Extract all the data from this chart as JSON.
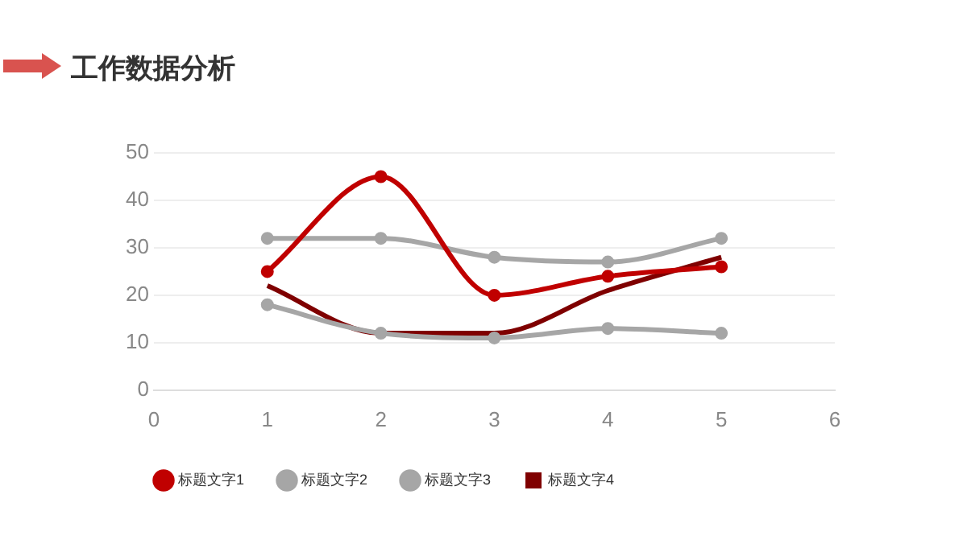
{
  "chart_data": {
    "type": "line",
    "title": "工作数据分析",
    "x": [
      1,
      2,
      3,
      4,
      5
    ],
    "series": [
      {
        "name": "标题文字1",
        "color": "#c00000",
        "values": [
          25,
          45,
          20,
          24,
          26
        ],
        "marker": "circle"
      },
      {
        "name": "标题文字2",
        "color": "#a6a6a6",
        "values": [
          32,
          32,
          28,
          27,
          32
        ],
        "marker": "circle"
      },
      {
        "name": "标题文字3",
        "color": "#a6a6a6",
        "values": [
          18,
          12,
          11,
          13,
          12
        ],
        "marker": "circle"
      },
      {
        "name": "标题文字4",
        "color": "#7f0000",
        "values": [
          22,
          12,
          12,
          21,
          28
        ],
        "marker": "none"
      }
    ],
    "xlim": [
      0,
      6
    ],
    "xticks": [
      0,
      1,
      2,
      3,
      4,
      5,
      6
    ],
    "ylim": [
      0,
      50
    ],
    "yticks": [
      0,
      10,
      20,
      30,
      40,
      50
    ],
    "grid": "y",
    "legend": "bottom left",
    "line_style": "solid"
  }
}
